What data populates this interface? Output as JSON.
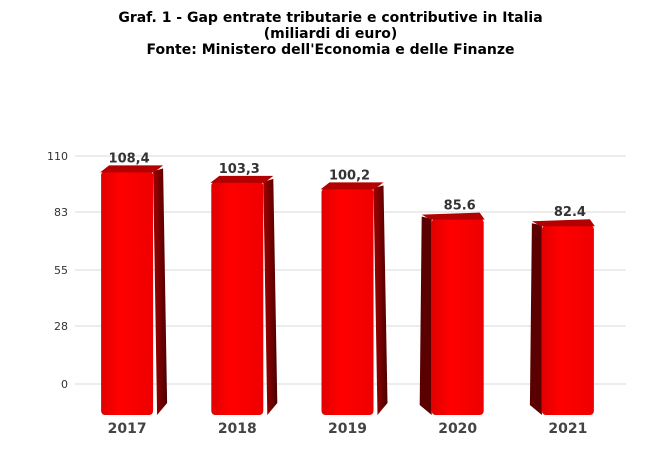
{
  "title_lines": [
    "Graf. 1 - Gap entrate tributarie e contributive in Italia",
    "(miliardi di euro)",
    "Fonte: Ministero dell'Economia e delle Finanze"
  ],
  "chart_data": {
    "type": "bar",
    "categories": [
      "2017",
      "2018",
      "2019",
      "2020",
      "2021"
    ],
    "values": [
      108.4,
      103.3,
      100.2,
      85.6,
      82.4
    ],
    "value_labels": [
      "108,4",
      "103,3",
      "100,2",
      "85.6",
      "82.4"
    ],
    "y_ticks": [
      "0",
      "28",
      "55",
      "83",
      "110"
    ],
    "ylim": [
      0,
      110
    ],
    "grid": true,
    "legend": "none",
    "bar_color": "#ff0000",
    "bar_side_color": "#8b0000"
  }
}
